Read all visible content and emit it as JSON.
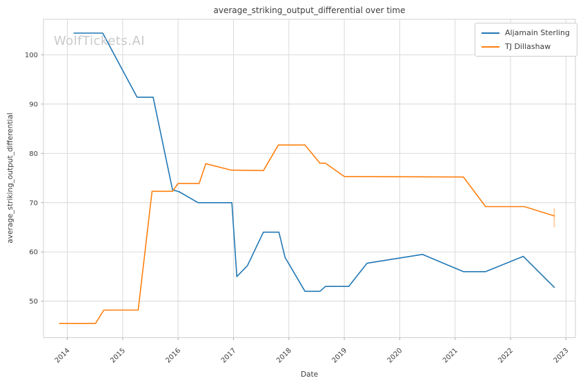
{
  "watermark": "WolfTickets.AI",
  "chart_data": {
    "type": "line",
    "title": "average_striking_output_differential over time",
    "xlabel": "Date",
    "ylabel": "average_striking_output_differential",
    "x_ticks": [
      2014,
      2015,
      2016,
      2017,
      2018,
      2019,
      2020,
      2021,
      2022,
      2023
    ],
    "y_ticks": [
      50,
      60,
      70,
      80,
      90,
      100
    ],
    "xlim": [
      2013.57,
      2023.17
    ],
    "ylim": [
      42.6,
      107.2
    ],
    "grid": true,
    "legend_position": "upper right",
    "series": [
      {
        "name": "Aljamain Sterling",
        "color": "#1f77b4",
        "points": [
          [
            2014.12,
            104.4
          ],
          [
            2014.64,
            104.4
          ],
          [
            2015.26,
            91.4
          ],
          [
            2015.55,
            91.4
          ],
          [
            2015.9,
            72.6
          ],
          [
            2016.02,
            72.2
          ],
          [
            2016.36,
            70.0
          ],
          [
            2016.97,
            70.0
          ],
          [
            2017.06,
            55.0
          ],
          [
            2017.25,
            57.2
          ],
          [
            2017.54,
            64.0
          ],
          [
            2017.82,
            64.0
          ],
          [
            2017.93,
            58.9
          ],
          [
            2018.29,
            52.0
          ],
          [
            2018.56,
            52.0
          ],
          [
            2018.66,
            53.0
          ],
          [
            2019.08,
            53.0
          ],
          [
            2019.41,
            57.7
          ],
          [
            2020.41,
            59.5
          ],
          [
            2021.15,
            56.0
          ],
          [
            2021.55,
            56.0
          ],
          [
            2022.23,
            59.1
          ],
          [
            2022.79,
            52.8
          ]
        ]
      },
      {
        "name": "TJ Dillashaw",
        "color": "#ff7f0e",
        "points": [
          [
            2013.86,
            45.5
          ],
          [
            2014.51,
            45.5
          ],
          [
            2014.66,
            48.2
          ],
          [
            2015.28,
            48.2
          ],
          [
            2015.53,
            72.3
          ],
          [
            2015.9,
            72.3
          ],
          [
            2016.0,
            73.9
          ],
          [
            2016.38,
            73.9
          ],
          [
            2016.5,
            77.9
          ],
          [
            2016.96,
            76.6
          ],
          [
            2017.54,
            76.5
          ],
          [
            2017.81,
            81.7
          ],
          [
            2018.29,
            81.7
          ],
          [
            2018.56,
            78.0
          ],
          [
            2018.66,
            78.0
          ],
          [
            2019.0,
            75.3
          ],
          [
            2021.15,
            75.2
          ],
          [
            2021.55,
            69.2
          ],
          [
            2022.25,
            69.2
          ],
          [
            2022.79,
            67.3
          ]
        ],
        "end_error_bar": {
          "x": 2022.79,
          "y_low": 65.0,
          "y_high": 68.9
        }
      }
    ]
  }
}
